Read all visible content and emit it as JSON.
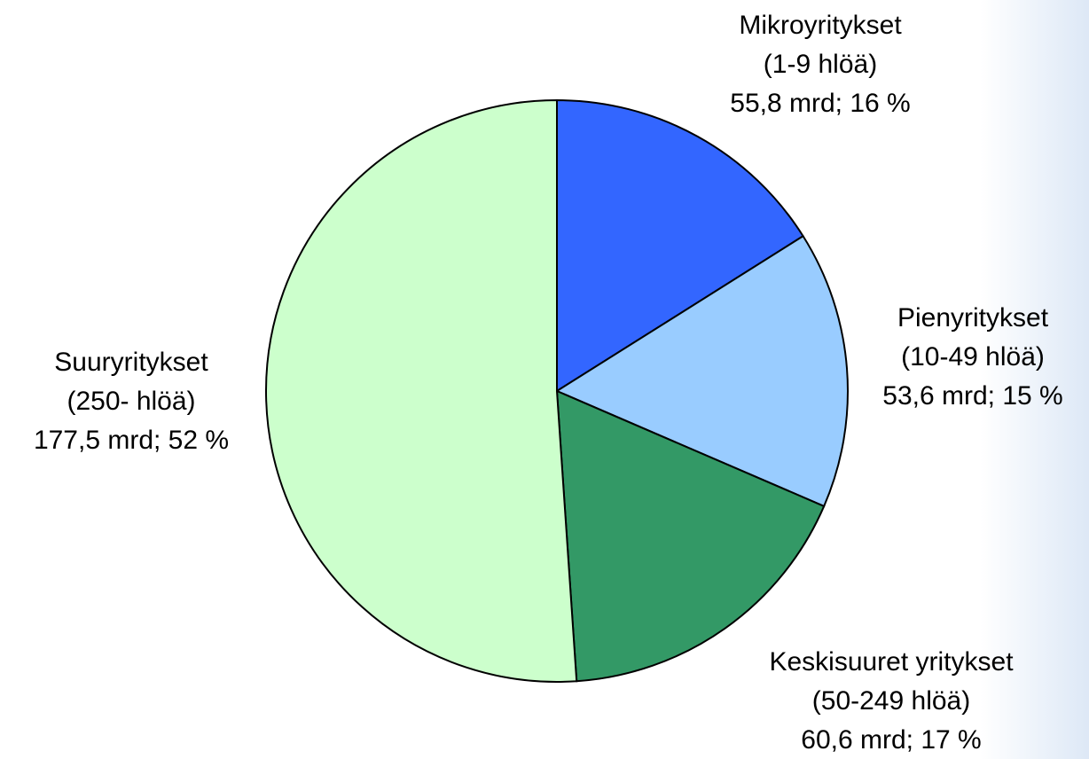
{
  "chart_data": {
    "type": "pie",
    "categories": [
      [
        "Mikroyritykset",
        "(1-9 hlöä)"
      ],
      [
        "Pienyritykset",
        "(10-49 hlöä)"
      ],
      [
        "Keskisuuret yritykset",
        "(50-249 hlöä)"
      ],
      [
        "Suuryritykset",
        "(250- hlöä)"
      ]
    ],
    "values": [
      55.8,
      53.6,
      60.6,
      177.5
    ],
    "value_labels": [
      "55,8 mrd; 16 %",
      "53,6 mrd; 15 %",
      "60,6 mrd; 17 %",
      "177,5 mrd; 52 %"
    ],
    "colors": [
      "#3366ff",
      "#99ccff",
      "#339966",
      "#ccffcc"
    ]
  }
}
